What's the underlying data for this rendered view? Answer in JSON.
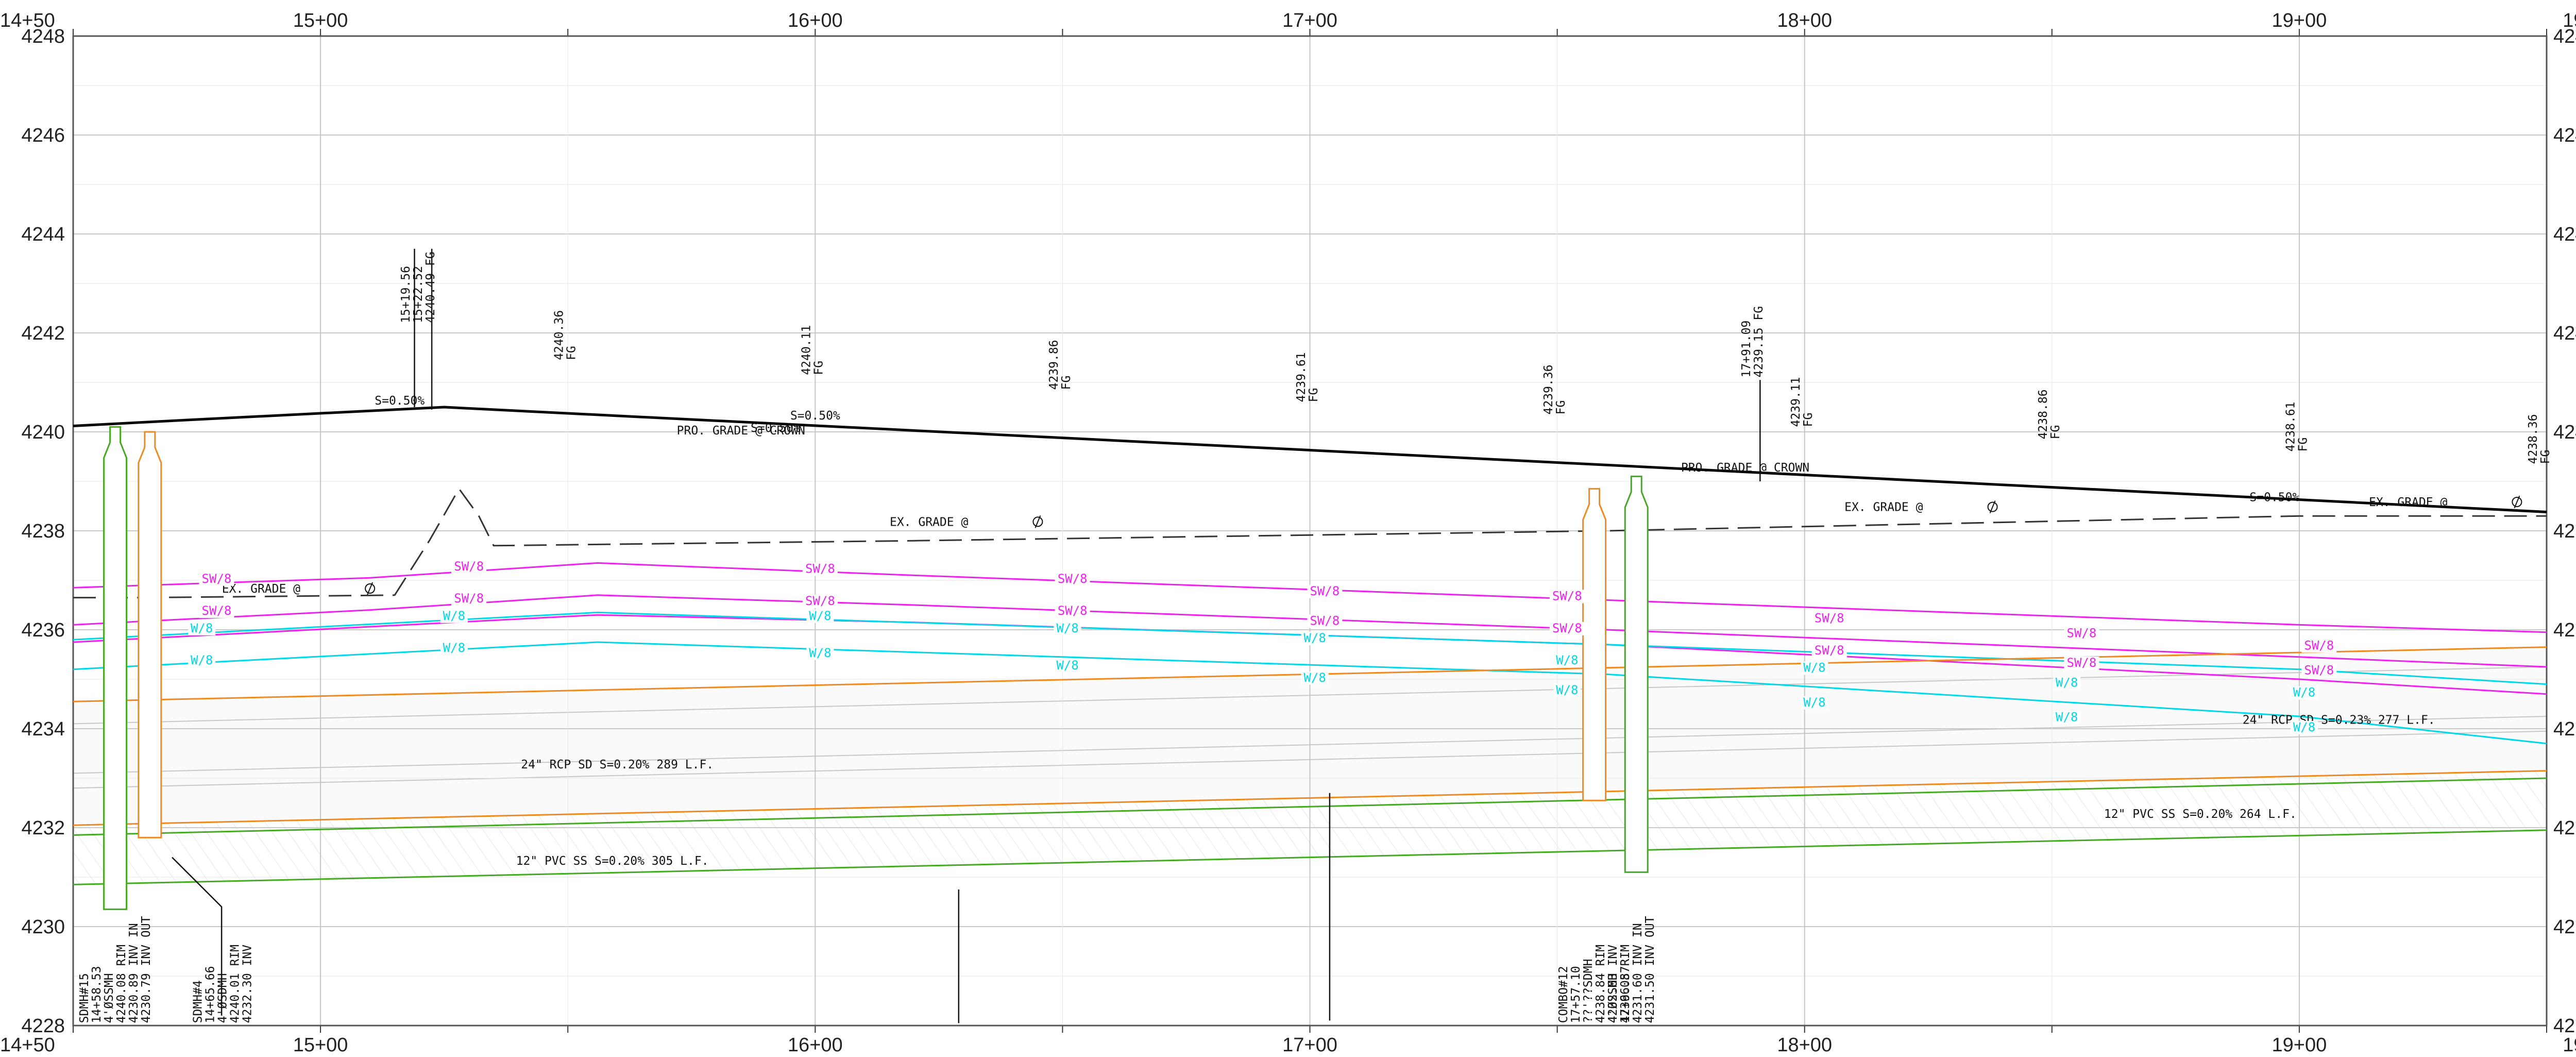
{
  "profile": {
    "stations": [
      {
        "sta": 1450,
        "label": "14+50"
      },
      {
        "sta": 1500,
        "label": "15+00"
      },
      {
        "sta": 1600,
        "label": "16+00"
      },
      {
        "sta": 1700,
        "label": "17+00"
      },
      {
        "sta": 1800,
        "label": "18+00"
      },
      {
        "sta": 1900,
        "label": "19+00"
      },
      {
        "sta": 1950,
        "label": "19+50"
      }
    ],
    "elevations": [
      {
        "elev": 4248,
        "label": "4248"
      },
      {
        "elev": 4246,
        "label": "4246"
      },
      {
        "elev": 4244,
        "label": "4244"
      },
      {
        "elev": 4242,
        "label": "4242"
      },
      {
        "elev": 4240,
        "label": "4240"
      },
      {
        "elev": 4238,
        "label": "4238"
      },
      {
        "elev": 4236,
        "label": "4236"
      },
      {
        "elev": 4234,
        "label": "4234"
      },
      {
        "elev": 4232,
        "label": "4232"
      },
      {
        "elev": 4230,
        "label": "4230"
      },
      {
        "elev": 4228,
        "label": "4228"
      }
    ],
    "lines": [
      {
        "name": "proposed-grade",
        "color": "#000000",
        "dash": "",
        "width": 5,
        "points": [
          [
            1450,
            4240.12
          ],
          [
            1475,
            4240.25
          ],
          [
            1525,
            4240.5
          ],
          [
            1565,
            4240.3
          ],
          [
            1700,
            4239.63
          ],
          [
            1840,
            4238.93
          ],
          [
            1950,
            4238.38
          ]
        ]
      },
      {
        "name": "existing-grade",
        "color": "#333333",
        "dash": "44 18",
        "width": 3,
        "points": [
          [
            1450,
            4236.65
          ],
          [
            1465,
            4236.65
          ],
          [
            1515,
            4236.7
          ],
          [
            1522,
            4237.8
          ],
          [
            1528,
            4238.85
          ],
          [
            1532,
            4238.3
          ],
          [
            1535,
            4237.7
          ],
          [
            1620,
            4237.8
          ],
          [
            1760,
            4238.0
          ],
          [
            1900,
            4238.3
          ],
          [
            1950,
            4238.3
          ]
        ]
      },
      {
        "name": "sewer-line-1",
        "color": "#ee22ee",
        "dash": "",
        "width": 3,
        "points": [
          [
            1450,
            4236.85
          ],
          [
            1510,
            4237.05
          ],
          [
            1556,
            4237.35
          ],
          [
            1620,
            4237.1
          ],
          [
            1760,
            4236.6
          ],
          [
            1900,
            4236.1
          ],
          [
            1950,
            4235.95
          ]
        ]
      },
      {
        "name": "sewer-line-2",
        "color": "#ee22ee",
        "dash": "",
        "width": 3,
        "points": [
          [
            1450,
            4236.1
          ],
          [
            1510,
            4236.4
          ],
          [
            1556,
            4236.7
          ],
          [
            1620,
            4236.5
          ],
          [
            1760,
            4236.0
          ],
          [
            1900,
            4235.45
          ],
          [
            1950,
            4235.25
          ]
        ]
      },
      {
        "name": "sewer-line-3",
        "color": "#ee22ee",
        "dash": "",
        "width": 3,
        "points": [
          [
            1450,
            4235.75
          ],
          [
            1556,
            4236.3
          ],
          [
            1620,
            4236.15
          ],
          [
            1760,
            4235.7
          ],
          [
            1900,
            4235.0
          ],
          [
            1950,
            4234.7
          ]
        ]
      },
      {
        "name": "water-line-1",
        "color": "#00d8e8",
        "dash": "",
        "width": 3,
        "points": [
          [
            1450,
            4235.8
          ],
          [
            1556,
            4236.35
          ],
          [
            1650,
            4236.05
          ],
          [
            1760,
            4235.7
          ],
          [
            1900,
            4235.2
          ],
          [
            1950,
            4234.9
          ]
        ]
      },
      {
        "name": "water-line-2",
        "color": "#00d8e8",
        "dash": "",
        "width": 3,
        "points": [
          [
            1450,
            4235.2
          ],
          [
            1556,
            4235.75
          ],
          [
            1650,
            4235.45
          ],
          [
            1760,
            4235.1
          ],
          [
            1900,
            4234.25
          ],
          [
            1950,
            4233.7
          ]
        ]
      },
      {
        "name": "storm-drain-top",
        "color": "#f08a20",
        "dash": "",
        "width": 3,
        "points": [
          [
            1450,
            4234.55
          ],
          [
            1950,
            4235.65
          ]
        ]
      },
      {
        "name": "storm-drain-invert",
        "color": "#f08a20",
        "dash": "",
        "width": 3,
        "points": [
          [
            1450,
            4232.05
          ],
          [
            1950,
            4233.15
          ]
        ]
      },
      {
        "name": "sanitary-sewer-top",
        "color": "#44aa22",
        "dash": "",
        "width": 3,
        "points": [
          [
            1450,
            4231.85
          ],
          [
            1950,
            4233.0
          ]
        ]
      },
      {
        "name": "sanitary-sewer-invert",
        "color": "#44aa22",
        "dash": "",
        "width": 3,
        "points": [
          [
            1450,
            4230.85
          ],
          [
            1950,
            4231.95
          ]
        ]
      }
    ],
    "structures": [
      {
        "name": "sdmh-15",
        "color": "#44aa22",
        "sta": 1458.5,
        "top": 4240.1,
        "bottom": 4230.35,
        "half": 4
      },
      {
        "name": "sdmh-upper",
        "color": "#f08a20",
        "sta": 1465.5,
        "top": 4240.0,
        "bottom": 4231.8,
        "half": 4
      },
      {
        "name": "combo-12",
        "color": "#f08a20",
        "sta": 1757.5,
        "top": 4238.85,
        "bottom": 4232.55,
        "half": 4
      },
      {
        "name": "sdmh-lower",
        "color": "#44aa22",
        "sta": 1766.0,
        "top": 4239.1,
        "bottom": 4231.1,
        "half": 4
      }
    ],
    "leaders": [
      {
        "points": [
          [
            1470,
            4231.4
          ],
          [
            1480,
            4230.4
          ],
          [
            1480,
            4228.2
          ]
        ]
      },
      {
        "points": [
          [
            1629,
            4230.75
          ],
          [
            1629,
            4228.05
          ]
        ]
      },
      {
        "points": [
          [
            1704,
            4232.7
          ],
          [
            1704,
            4228.1
          ]
        ]
      },
      {
        "points": [
          [
            1519,
            4243.7
          ],
          [
            1519,
            4240.5
          ]
        ]
      },
      {
        "points": [
          [
            1522.5,
            4243.7
          ],
          [
            1522.5,
            4240.45
          ]
        ]
      },
      {
        "points": [
          [
            1791,
            4241.05
          ],
          [
            1791,
            4239.0
          ]
        ]
      }
    ],
    "notes": [
      {
        "text": "S=0.50%",
        "sta": 1516,
        "elev": 4240.55
      },
      {
        "text": "S=0.50%",
        "sta": 1600,
        "elev": 4240.25
      },
      {
        "text": "PRO. GRADE @ CROWN",
        "sta": 1585,
        "elev": 4239.95
      },
      {
        "text": "S=0.50%",
        "sta": 1592,
        "elev": 4240.0
      },
      {
        "text": "PRO. GRADE @ CROWN",
        "sta": 1788,
        "elev": 4239.2
      },
      {
        "text": "S=0.50%",
        "sta": 1895,
        "elev": 4238.6
      },
      {
        "text": "EX. GRADE @",
        "sta": 1488,
        "elev": 4236.75
      },
      {
        "text": "EX. GRADE @",
        "sta": 1623,
        "elev": 4238.1
      },
      {
        "text": "EX. GRADE @",
        "sta": 1816,
        "elev": 4238.4
      },
      {
        "text": "EX. GRADE @",
        "sta": 1922,
        "elev": 4238.5
      },
      {
        "text": "24\" RCP SD S=0.20% 289 L.F.",
        "sta": 1560,
        "elev": 4233.2
      },
      {
        "text": "12\" PVC SS S=0.20% 305 L.F.",
        "sta": 1559,
        "elev": 4231.25
      },
      {
        "text": "24\" RCP SD S=0.23% 277 L.F.",
        "sta": 1908,
        "elev": 4234.1
      },
      {
        "text": "12\" PVC SS S=0.20% 264 L.F.",
        "sta": 1880,
        "elev": 4232.2
      }
    ],
    "centerline_marks": [
      {
        "sta": 1510,
        "elev": 4236.75
      },
      {
        "sta": 1645,
        "elev": 4238.1
      },
      {
        "sta": 1838,
        "elev": 4238.4
      },
      {
        "sta": 1944,
        "elev": 4238.5
      }
    ],
    "line_labels": [
      {
        "text": "SW/8",
        "color": "#ee22ee",
        "sta": 1479,
        "elev": 4236.95
      },
      {
        "text": "SW/8",
        "color": "#ee22ee",
        "sta": 1530,
        "elev": 4237.2
      },
      {
        "text": "SW/8",
        "color": "#ee22ee",
        "sta": 1601,
        "elev": 4237.15
      },
      {
        "text": "SW/8",
        "color": "#ee22ee",
        "sta": 1652,
        "elev": 4236.95
      },
      {
        "text": "SW/8",
        "color": "#ee22ee",
        "sta": 1703,
        "elev": 4236.7
      },
      {
        "text": "SW/8",
        "color": "#ee22ee",
        "sta": 1752,
        "elev": 4236.6
      },
      {
        "text": "SW/8",
        "color": "#ee22ee",
        "sta": 1805,
        "elev": 4236.15
      },
      {
        "text": "SW/8",
        "color": "#ee22ee",
        "sta": 1856,
        "elev": 4235.85
      },
      {
        "text": "SW/8",
        "color": "#ee22ee",
        "sta": 1904,
        "elev": 4235.6
      },
      {
        "text": "SW/8",
        "color": "#ee22ee",
        "sta": 1479,
        "elev": 4236.3
      },
      {
        "text": "SW/8",
        "color": "#ee22ee",
        "sta": 1530,
        "elev": 4236.55
      },
      {
        "text": "SW/8",
        "color": "#ee22ee",
        "sta": 1601,
        "elev": 4236.5
      },
      {
        "text": "SW/8",
        "color": "#ee22ee",
        "sta": 1652,
        "elev": 4236.3
      },
      {
        "text": "SW/8",
        "color": "#ee22ee",
        "sta": 1703,
        "elev": 4236.1
      },
      {
        "text": "SW/8",
        "color": "#ee22ee",
        "sta": 1752,
        "elev": 4235.95
      },
      {
        "text": "SW/8",
        "color": "#ee22ee",
        "sta": 1805,
        "elev": 4235.5
      },
      {
        "text": "SW/8",
        "color": "#ee22ee",
        "sta": 1856,
        "elev": 4235.25
      },
      {
        "text": "SW/8",
        "color": "#ee22ee",
        "sta": 1904,
        "elev": 4235.1
      },
      {
        "text": "W/8",
        "color": "#00d8e8",
        "sta": 1476,
        "elev": 4235.95
      },
      {
        "text": "W/8",
        "color": "#00d8e8",
        "sta": 1527,
        "elev": 4236.2
      },
      {
        "text": "W/8",
        "color": "#00d8e8",
        "sta": 1601,
        "elev": 4236.2
      },
      {
        "text": "W/8",
        "color": "#00d8e8",
        "sta": 1651,
        "elev": 4235.95
      },
      {
        "text": "W/8",
        "color": "#00d8e8",
        "sta": 1701,
        "elev": 4235.75
      },
      {
        "text": "W/8",
        "color": "#00d8e8",
        "sta": 1752,
        "elev": 4235.3
      },
      {
        "text": "W/8",
        "color": "#00d8e8",
        "sta": 1802,
        "elev": 4235.15
      },
      {
        "text": "W/8",
        "color": "#00d8e8",
        "sta": 1853,
        "elev": 4234.85
      },
      {
        "text": "W/8",
        "color": "#00d8e8",
        "sta": 1901,
        "elev": 4234.65
      },
      {
        "text": "W/8",
        "color": "#00d8e8",
        "sta": 1476,
        "elev": 4235.3
      },
      {
        "text": "W/8",
        "color": "#00d8e8",
        "sta": 1527,
        "elev": 4235.55
      },
      {
        "text": "W/8",
        "color": "#00d8e8",
        "sta": 1601,
        "elev": 4235.45
      },
      {
        "text": "W/8",
        "color": "#00d8e8",
        "sta": 1651,
        "elev": 4235.2
      },
      {
        "text": "W/8",
        "color": "#00d8e8",
        "sta": 1701,
        "elev": 4234.95
      },
      {
        "text": "W/8",
        "color": "#00d8e8",
        "sta": 1752,
        "elev": 4234.7
      },
      {
        "text": "W/8",
        "color": "#00d8e8",
        "sta": 1802,
        "elev": 4234.45
      },
      {
        "text": "W/8",
        "color": "#00d8e8",
        "sta": 1853,
        "elev": 4234.15
      },
      {
        "text": "W/8",
        "color": "#00d8e8",
        "sta": 1901,
        "elev": 4233.95
      }
    ],
    "vertical_notes": [
      {
        "lines": [
          "15+19.56",
          "15+22.52",
          "4240.49 FG"
        ],
        "sta": 1518,
        "elev": 4242.2
      },
      {
        "lines": [
          "4240.36",
          "FG"
        ],
        "sta": 1549,
        "elev": 4241.45
      },
      {
        "lines": [
          "4240.11",
          "FG"
        ],
        "sta": 1599,
        "elev": 4241.15
      },
      {
        "lines": [
          "4239.86",
          "FG"
        ],
        "sta": 1649,
        "elev": 4240.85
      },
      {
        "lines": [
          "4239.61",
          "FG"
        ],
        "sta": 1699,
        "elev": 4240.6
      },
      {
        "lines": [
          "4239.36",
          "FG"
        ],
        "sta": 1749,
        "elev": 4240.35
      },
      {
        "lines": [
          "17+91.09",
          "4239.15 FG"
        ],
        "sta": 1789,
        "elev": 4241.1
      },
      {
        "lines": [
          "4239.11",
          "FG"
        ],
        "sta": 1799,
        "elev": 4240.1
      },
      {
        "lines": [
          "4238.86",
          "FG"
        ],
        "sta": 1849,
        "elev": 4239.85
      },
      {
        "lines": [
          "4238.61",
          "FG"
        ],
        "sta": 1899,
        "elev": 4239.6
      },
      {
        "lines": [
          "4238.36",
          "FG"
        ],
        "sta": 1948,
        "elev": 4239.35
      },
      {
        "lines": [
          "SDMH#15",
          "14+58.53",
          "4'ØSSMH",
          "4240.08  RIM",
          "4230.89  INV  IN",
          "4230.79  INV  OUT"
        ],
        "sta": 1453,
        "elev": 4228.05
      },
      {
        "lines": [
          "SDMH#4",
          "14+65.66",
          "4'ØSDMH",
          "4240.01  RIM",
          "4232.30  INV"
        ],
        "sta": 1476,
        "elev": 4228.05
      },
      {
        "lines": [
          "COMBO#12",
          "17+57.10",
          "??'??SDMH",
          "4238.84 RIM",
          "4232.63 INV",
          "17+66.57"
        ],
        "sta": 1752,
        "elev": 4228.05
      },
      {
        "lines": [
          "4'ØSSMH",
          "4239.08  RIM",
          "4231.60  INV  IN",
          "4231.50  INV  OUT"
        ],
        "sta": 1762,
        "elev": 4228.05
      }
    ]
  }
}
